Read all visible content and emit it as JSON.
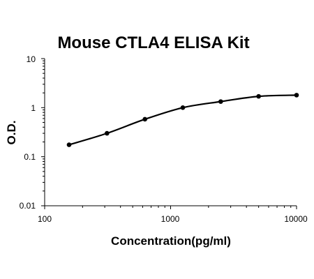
{
  "chart_data": {
    "type": "line",
    "title": "Mouse CTLA4 ELISA Kit",
    "xlabel": "Concentration(pg/ml)",
    "ylabel": "O.D.",
    "xscale": "log",
    "yscale": "log",
    "xlim": [
      100,
      10000
    ],
    "ylim": [
      0.01,
      10
    ],
    "xticks": [
      "100",
      "1000",
      "10000"
    ],
    "yticks": [
      "0.01",
      "0.1",
      "1",
      "10"
    ],
    "grid": false,
    "legend": "none",
    "curve": "smooth",
    "line_color": "#000000",
    "marker": "filled-circle",
    "series": [
      {
        "x": [
          156.25,
          312.5,
          625,
          1250,
          2500,
          5000,
          10000
        ],
        "y": [
          0.175,
          0.3,
          0.58,
          1.0,
          1.33,
          1.7,
          1.8
        ]
      }
    ]
  }
}
